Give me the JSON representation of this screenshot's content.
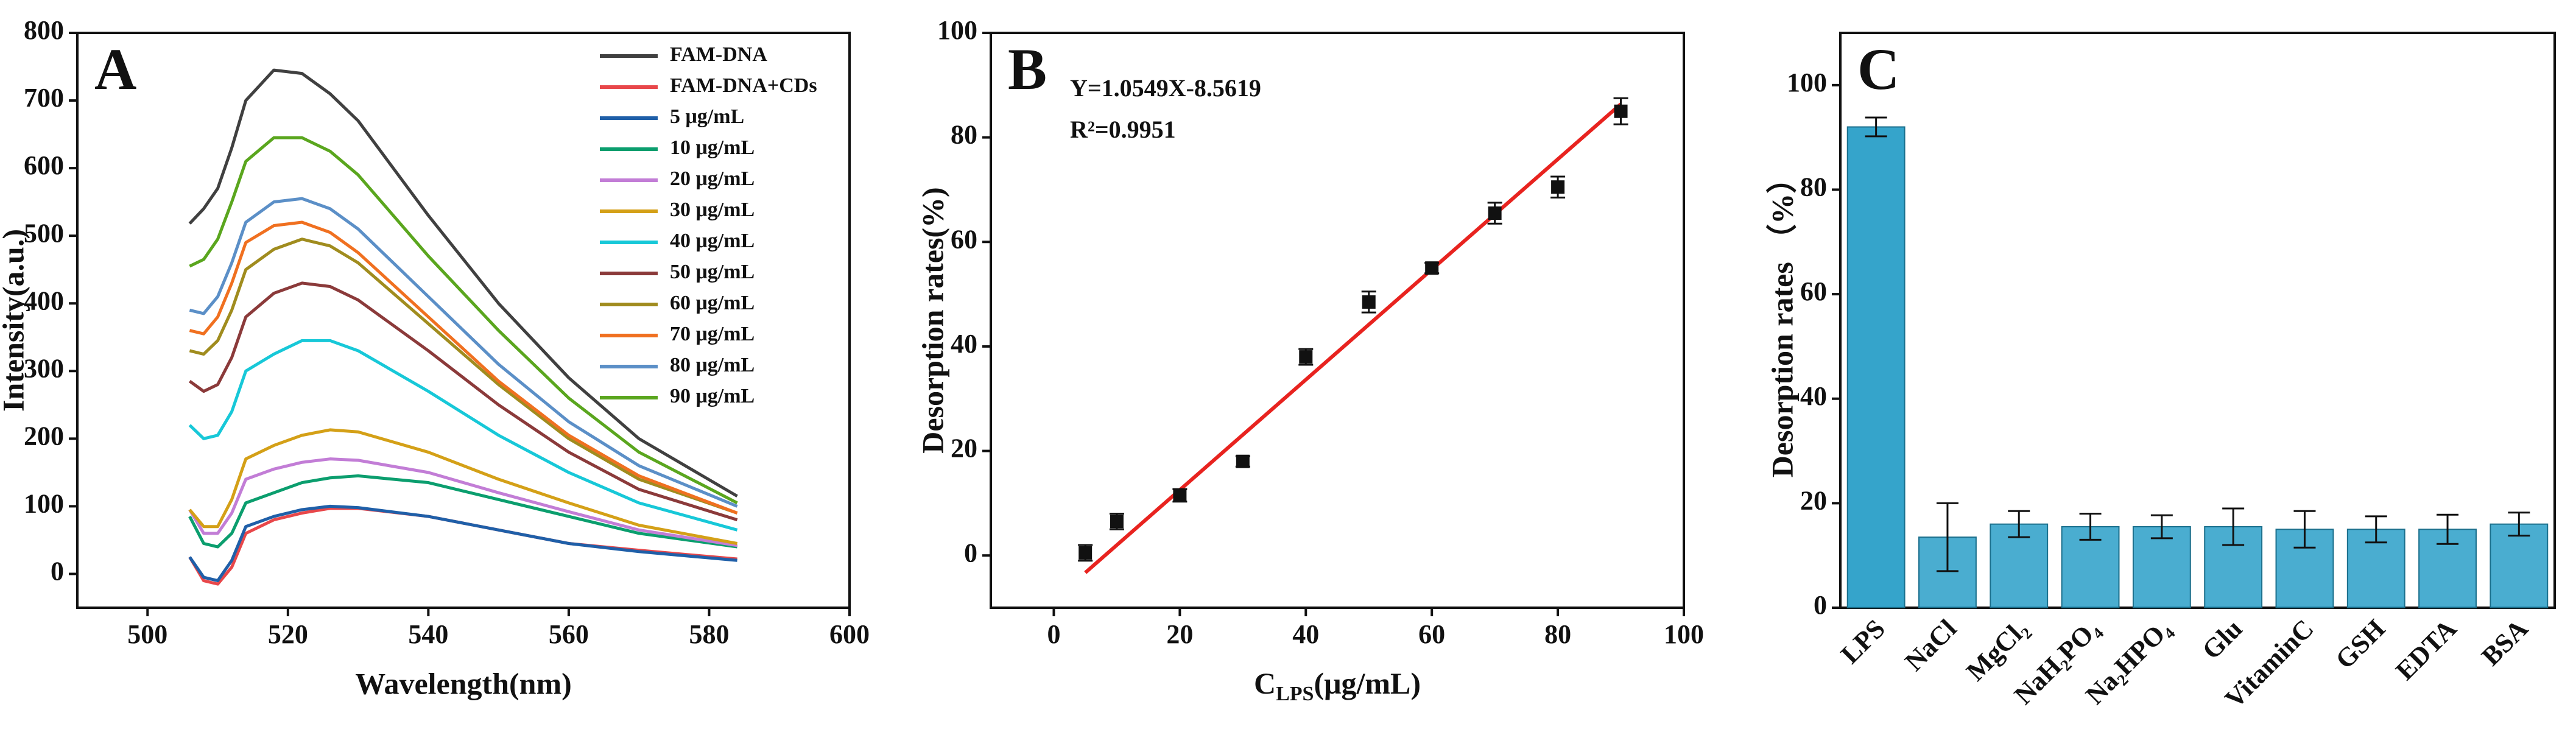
{
  "chart_data": [
    {
      "type": "line",
      "panel_label": "A",
      "x_label": "Wavelength(nm)",
      "y_label": "Intensity(a.u.)",
      "x": [
        506,
        508,
        510,
        512,
        514,
        518,
        522,
        526,
        530,
        540,
        550,
        560,
        570,
        584
      ],
      "xlim": [
        490,
        600
      ],
      "xticks": [
        500,
        520,
        540,
        560,
        580,
        600
      ],
      "ylim": [
        -50,
        800
      ],
      "yticks": [
        0,
        100,
        200,
        300,
        400,
        500,
        600,
        700,
        800
      ],
      "series": [
        {
          "name": "FAM-DNA",
          "color": "#404040",
          "values": [
            518,
            540,
            570,
            630,
            700,
            745,
            740,
            710,
            670,
            530,
            400,
            290,
            200,
            115
          ]
        },
        {
          "name": "FAM-DNA+CDs",
          "color": "#e8474a",
          "values": [
            25,
            -10,
            -15,
            10,
            60,
            80,
            90,
            97,
            97,
            85,
            65,
            45,
            35,
            22
          ]
        },
        {
          "name": "5 μg/mL",
          "color": "#1f5fa8",
          "values": [
            25,
            -5,
            -10,
            20,
            70,
            85,
            95,
            100,
            98,
            85,
            65,
            45,
            33,
            20
          ]
        },
        {
          "name": "10 μg/mL",
          "color": "#0b9e6e",
          "values": [
            85,
            45,
            40,
            60,
            105,
            120,
            135,
            142,
            145,
            135,
            110,
            85,
            60,
            40
          ]
        },
        {
          "name": "20 μg/mL",
          "color": "#c27dd6",
          "values": [
            95,
            60,
            60,
            90,
            140,
            155,
            165,
            170,
            168,
            150,
            120,
            92,
            65,
            42
          ]
        },
        {
          "name": "30 μg/mL",
          "color": "#d4a017",
          "values": [
            95,
            70,
            70,
            110,
            170,
            190,
            205,
            213,
            210,
            180,
            140,
            105,
            72,
            45
          ]
        },
        {
          "name": "40 μg/mL",
          "color": "#17c8d8",
          "values": [
            220,
            200,
            205,
            240,
            300,
            325,
            345,
            345,
            330,
            270,
            205,
            150,
            105,
            65
          ]
        },
        {
          "name": "50 μg/mL",
          "color": "#8b3a3a",
          "values": [
            285,
            270,
            280,
            320,
            380,
            415,
            430,
            425,
            405,
            330,
            250,
            180,
            125,
            80
          ]
        },
        {
          "name": "60 μg/mL",
          "color": "#a08c1e",
          "values": [
            330,
            325,
            345,
            390,
            450,
            480,
            495,
            485,
            460,
            370,
            280,
            200,
            140,
            90
          ]
        },
        {
          "name": "70 μg/mL",
          "color": "#f07020",
          "values": [
            360,
            355,
            380,
            430,
            490,
            515,
            520,
            505,
            475,
            380,
            285,
            205,
            145,
            90
          ]
        },
        {
          "name": "80 μg/mL",
          "color": "#5b8fc7",
          "values": [
            390,
            385,
            410,
            460,
            520,
            550,
            555,
            540,
            510,
            410,
            310,
            225,
            160,
            100
          ]
        },
        {
          "name": "90 μg/mL",
          "color": "#5aa61e",
          "values": [
            455,
            465,
            495,
            550,
            610,
            645,
            645,
            625,
            590,
            470,
            360,
            260,
            180,
            105
          ]
        }
      ]
    },
    {
      "type": "scatter",
      "panel_label": "B",
      "x_label": [
        "C",
        "LPS",
        "(μg/mL)"
      ],
      "y_label": "Desorption rates(%)",
      "annotations": [
        "Y=1.0549X-8.5619",
        "R²=0.9951"
      ],
      "x": [
        5,
        10,
        20,
        30,
        40,
        50,
        60,
        70,
        80,
        90
      ],
      "values": [
        0.5,
        6.5,
        11.5,
        18,
        38,
        48.5,
        55,
        65.5,
        70.5,
        85
      ],
      "errors": [
        1.5,
        1.5,
        1.2,
        1,
        1.5,
        2,
        1,
        2,
        2,
        2.5
      ],
      "color": "#111111",
      "fit": {
        "slope": 1.0549,
        "intercept": -8.5619,
        "color": "#e8231f"
      },
      "xlim": [
        -10,
        100
      ],
      "xticks": [
        0,
        20,
        40,
        60,
        80,
        100
      ],
      "ylim": [
        -10,
        100
      ],
      "yticks": [
        0,
        20,
        40,
        60,
        80,
        100
      ]
    },
    {
      "type": "bar",
      "panel_label": "C",
      "y_label": "Desorption rates （%）",
      "categories": [
        "LPS",
        "NaCl",
        "MgCl₂",
        "NaH₂PO₄",
        "Na₂HPO₄",
        "Glu",
        "VitaminC",
        "GSH",
        "EDTA",
        "BSA"
      ],
      "values": [
        92,
        13.5,
        16,
        15.5,
        15.5,
        15.5,
        15,
        15,
        15,
        16
      ],
      "errors": [
        1.8,
        6.5,
        2.5,
        2.5,
        2.2,
        3.5,
        3.5,
        2.5,
        2.8,
        2.2
      ],
      "color": "#2a9fc8",
      "ylim": [
        0,
        110
      ],
      "yticks": [
        0,
        20,
        40,
        60,
        80,
        100
      ]
    }
  ]
}
